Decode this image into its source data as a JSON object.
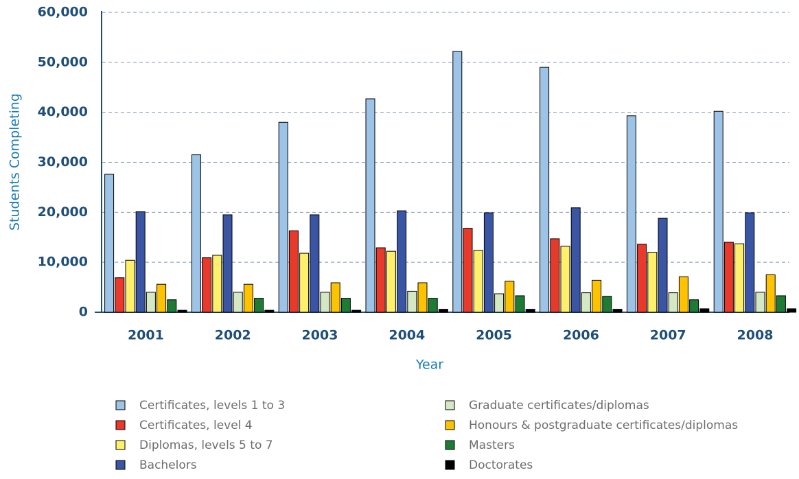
{
  "chart_data": {
    "type": "bar",
    "x_label": "Year",
    "y_label": "Students Completing",
    "categories": [
      "2001",
      "2002",
      "2003",
      "2004",
      "2005",
      "2006",
      "2007",
      "2008"
    ],
    "series": [
      {
        "name": "Certificates, levels 1 to 3",
        "color": "#9dc3e6",
        "values": [
          27600,
          31500,
          38000,
          42700,
          52200,
          49000,
          39300,
          40200
        ]
      },
      {
        "name": "Certificates, level 4",
        "color": "#e8392a",
        "values": [
          6900,
          10900,
          16300,
          12900,
          16800,
          14700,
          13600,
          14000
        ]
      },
      {
        "name": "Diplomas, levels 5 to 7",
        "color": "#fef06a",
        "values": [
          10400,
          11400,
          11800,
          12200,
          12400,
          13200,
          12000,
          13700
        ]
      },
      {
        "name": "Bachelors",
        "color": "#3a55a4",
        "values": [
          20100,
          19500,
          19500,
          20300,
          19900,
          20900,
          18800,
          19900
        ]
      },
      {
        "name": "Graduate certificates/diplomas",
        "color": "#d5e8c4",
        "values": [
          4000,
          4000,
          4000,
          4200,
          3700,
          3900,
          3900,
          4000
        ]
      },
      {
        "name": "Honours & postgraduate certificates/diplomas",
        "color": "#fdc300",
        "values": [
          5600,
          5600,
          5900,
          5900,
          6200,
          6400,
          7100,
          7500
        ]
      },
      {
        "name": "Masters",
        "color": "#1e7b33",
        "values": [
          2500,
          2800,
          2800,
          2800,
          3300,
          3200,
          2500,
          3300
        ]
      },
      {
        "name": "Doctorates",
        "color": "#000000",
        "values": [
          400,
          400,
          400,
          600,
          600,
          600,
          700,
          700
        ]
      }
    ],
    "ylim": [
      0,
      60000
    ],
    "yticks": [
      0,
      {
        "value": 10000,
        "label": "10,000"
      },
      {
        "value": 20000,
        "label": "20,000"
      },
      {
        "value": 30000,
        "label": "30,000"
      },
      {
        "value": 40000,
        "label": "40,000"
      },
      {
        "value": 50000,
        "label": "50,000"
      },
      {
        "value": 60000,
        "label": "60,000"
      }
    ],
    "grid": true,
    "legend": "bottom"
  }
}
